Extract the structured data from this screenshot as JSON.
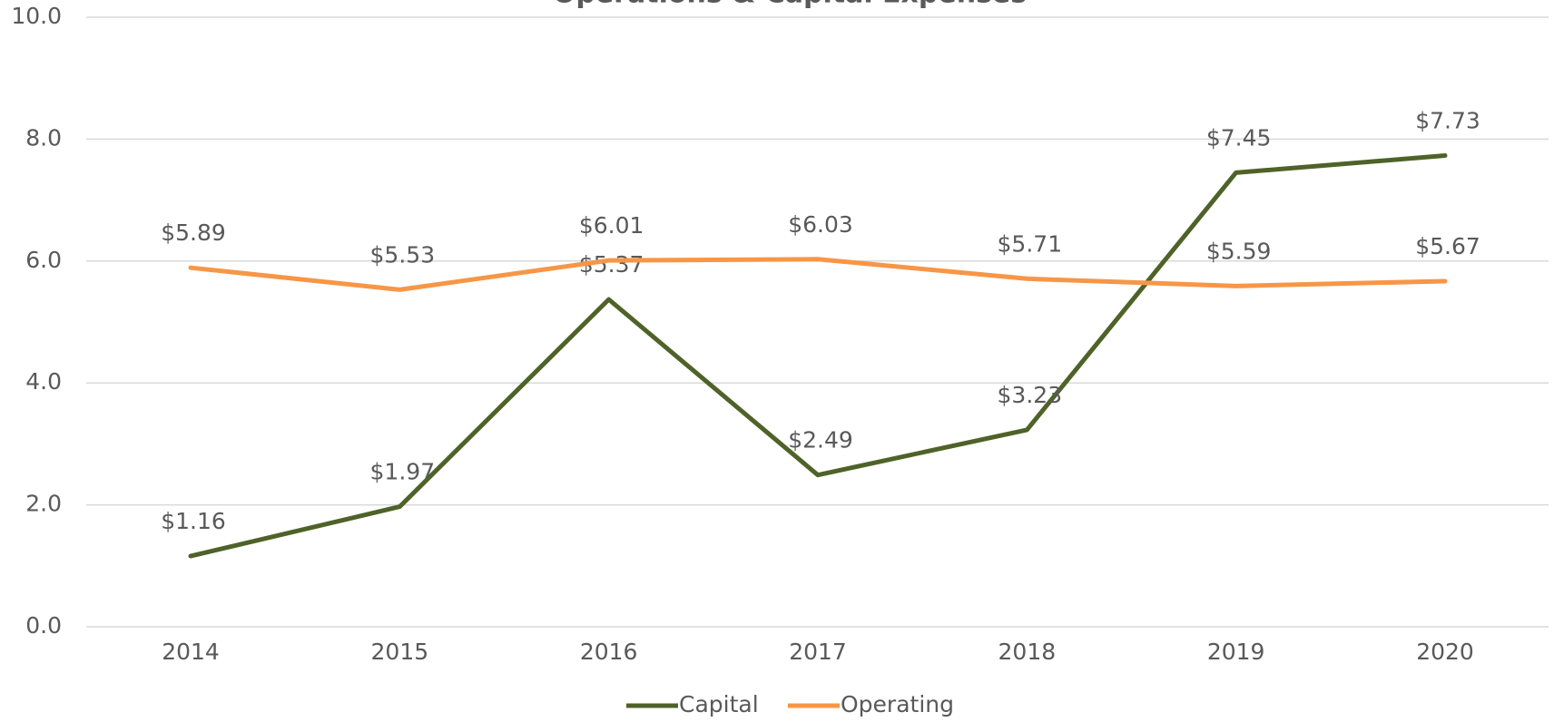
{
  "chart_data": {
    "type": "line",
    "title": "Operations & Capital Expenses",
    "categories": [
      "2014",
      "2015",
      "2016",
      "2017",
      "2018",
      "2019",
      "2020"
    ],
    "series": [
      {
        "name": "Capital",
        "color": "#4f6228",
        "values": [
          1.16,
          1.97,
          5.37,
          2.49,
          3.23,
          7.45,
          7.73
        ],
        "value_labels": [
          "$1.16",
          "$1.97",
          "$5.37",
          "$2.49",
          "$3.23",
          "$7.45",
          "$7.73"
        ]
      },
      {
        "name": "Operating",
        "color": "#f79646",
        "values": [
          5.89,
          5.53,
          6.01,
          6.03,
          5.71,
          5.59,
          5.67
        ],
        "value_labels": [
          "$5.89",
          "$5.53",
          "$6.01",
          "$6.03",
          "$5.71",
          "$5.59",
          "$5.67"
        ]
      }
    ],
    "ylim": [
      0,
      10
    ],
    "yticks": [
      {
        "value": 0,
        "label": "0.0"
      },
      {
        "value": 2,
        "label": "2.0"
      },
      {
        "value": 4,
        "label": "4.0"
      },
      {
        "value": 6,
        "label": "6.0"
      },
      {
        "value": 8,
        "label": "8.0"
      },
      {
        "value": 10,
        "label": "10.0"
      }
    ],
    "grid": true,
    "legend": "bottom"
  }
}
